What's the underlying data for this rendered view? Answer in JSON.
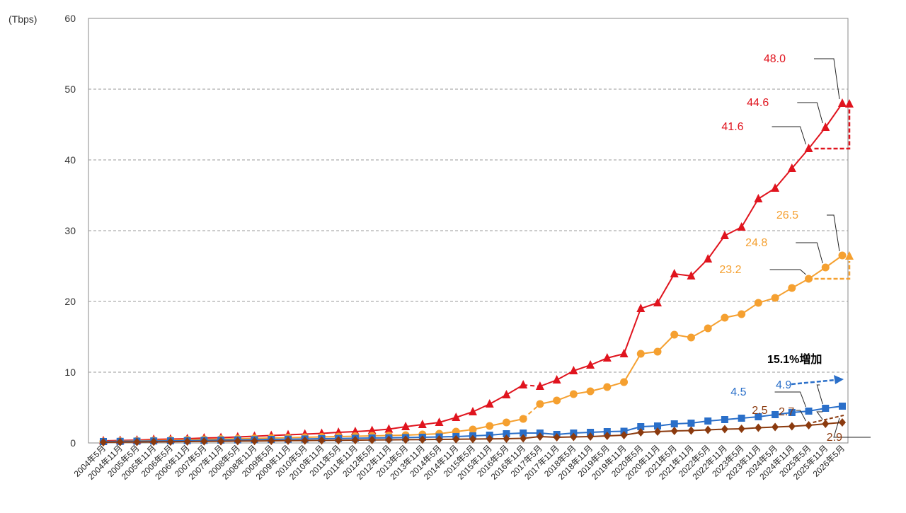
{
  "chart_data": {
    "type": "line",
    "y_unit": "(Tbps)",
    "ylim": [
      0,
      60
    ],
    "yticks": [
      0,
      10,
      20,
      30,
      40,
      50,
      60
    ],
    "grid": true,
    "categories": [
      "2004年5月",
      "2004年11月",
      "2005年5月",
      "2005年11月",
      "2006年5月",
      "2006年11月",
      "2007年5月",
      "2007年11月",
      "2008年5月",
      "2008年11月",
      "2009年5月",
      "2009年11月",
      "2010年5月",
      "2010年11月",
      "2011年5月",
      "2011年11月",
      "2012年5月",
      "2012年11月",
      "2013年5月",
      "2013年11月",
      "2014年5月",
      "2014年11月",
      "2015年5月",
      "2015年11月",
      "2016年5月",
      "2016年11月",
      "2017年5月",
      "2017年11月",
      "2018年5月",
      "2018年11月",
      "2019年5月",
      "2019年11月",
      "2020年5月",
      "2020年11月",
      "2021年5月",
      "2021年11月",
      "2022年5月",
      "2022年11月",
      "2023年5月",
      "2023年11月",
      "2024年5月",
      "2024年11月",
      "2025年5月",
      "2025年11月",
      "2026年5月"
    ],
    "series": [
      {
        "color": "#e0141e",
        "marker": "triangle",
        "break_after_index": 25,
        "values": [
          0.3,
          0.35,
          0.4,
          0.5,
          0.55,
          0.6,
          0.7,
          0.75,
          0.85,
          0.95,
          1.05,
          1.15,
          1.25,
          1.35,
          1.5,
          1.6,
          1.75,
          1.95,
          2.3,
          2.6,
          2.9,
          3.6,
          4.4,
          5.5,
          6.8,
          8.2,
          8.0,
          8.9,
          10.2,
          11.0,
          12.0,
          12.6,
          19.0,
          19.8,
          23.9,
          23.6,
          26.0,
          29.3,
          30.5,
          34.5,
          36.0,
          38.8,
          41.6,
          44.6,
          48.0
        ]
      },
      {
        "color": "#f5a030",
        "marker": "circle",
        "break_after_index": 25,
        "values": [
          0.2,
          0.25,
          0.3,
          0.35,
          0.4,
          0.45,
          0.5,
          0.55,
          0.6,
          0.65,
          0.7,
          0.75,
          0.8,
          0.85,
          0.9,
          0.95,
          1.0,
          1.05,
          1.1,
          1.2,
          1.3,
          1.6,
          1.9,
          2.4,
          2.9,
          3.4,
          5.5,
          6.0,
          6.9,
          7.3,
          7.9,
          8.6,
          12.6,
          12.9,
          15.3,
          14.9,
          16.2,
          17.7,
          18.2,
          19.8,
          20.5,
          21.9,
          23.2,
          24.8,
          26.5
        ]
      },
      {
        "color": "#2a6fc9",
        "marker": "square",
        "values": [
          0.2,
          0.22,
          0.25,
          0.28,
          0.3,
          0.33,
          0.36,
          0.4,
          0.43,
          0.46,
          0.5,
          0.53,
          0.56,
          0.6,
          0.63,
          0.66,
          0.7,
          0.73,
          0.76,
          0.8,
          0.85,
          0.9,
          1.0,
          1.1,
          1.3,
          1.4,
          1.4,
          1.2,
          1.4,
          1.5,
          1.6,
          1.65,
          2.3,
          2.4,
          2.7,
          2.8,
          3.1,
          3.3,
          3.5,
          3.7,
          4.0,
          4.3,
          4.5,
          4.9,
          5.2
        ]
      },
      {
        "color": "#8b3a0e",
        "marker": "diamond",
        "values": [
          0.1,
          0.12,
          0.14,
          0.16,
          0.18,
          0.2,
          0.22,
          0.24,
          0.26,
          0.28,
          0.3,
          0.32,
          0.34,
          0.36,
          0.38,
          0.4,
          0.42,
          0.44,
          0.46,
          0.48,
          0.5,
          0.52,
          0.55,
          0.58,
          0.6,
          0.65,
          0.9,
          0.8,
          0.85,
          0.9,
          1.0,
          1.1,
          1.5,
          1.6,
          1.7,
          1.75,
          1.85,
          1.95,
          2.0,
          2.15,
          2.25,
          2.35,
          2.5,
          2.7,
          2.9
        ]
      }
    ],
    "data_labels": [
      {
        "series": 0,
        "index": 42,
        "text": "41.6",
        "color": "#e0141e"
      },
      {
        "series": 0,
        "index": 43,
        "text": "44.6",
        "color": "#e0141e"
      },
      {
        "series": 0,
        "index": 44,
        "text": "48.0",
        "color": "#e0141e"
      },
      {
        "series": 1,
        "index": 42,
        "text": "23.2",
        "color": "#f5a030"
      },
      {
        "series": 1,
        "index": 43,
        "text": "24.8",
        "color": "#f5a030"
      },
      {
        "series": 1,
        "index": 44,
        "text": "26.5",
        "color": "#f5a030"
      },
      {
        "series": 2,
        "index": 42,
        "text": "4.5",
        "color": "#2a6fc9"
      },
      {
        "series": 2,
        "index": 43,
        "text": "4.9",
        "color": "#2a6fc9"
      },
      {
        "series": 3,
        "index": 42,
        "text": "2.5",
        "color": "#8b3a0e"
      },
      {
        "series": 3,
        "index": 43,
        "text": "2.7",
        "color": "#8b3a0e"
      },
      {
        "series": 3,
        "index": 44,
        "text": "2.9",
        "color": "#8b3a0e"
      }
    ],
    "annotation": {
      "text": "15.1%増加",
      "color": "#2a6fc9"
    }
  }
}
